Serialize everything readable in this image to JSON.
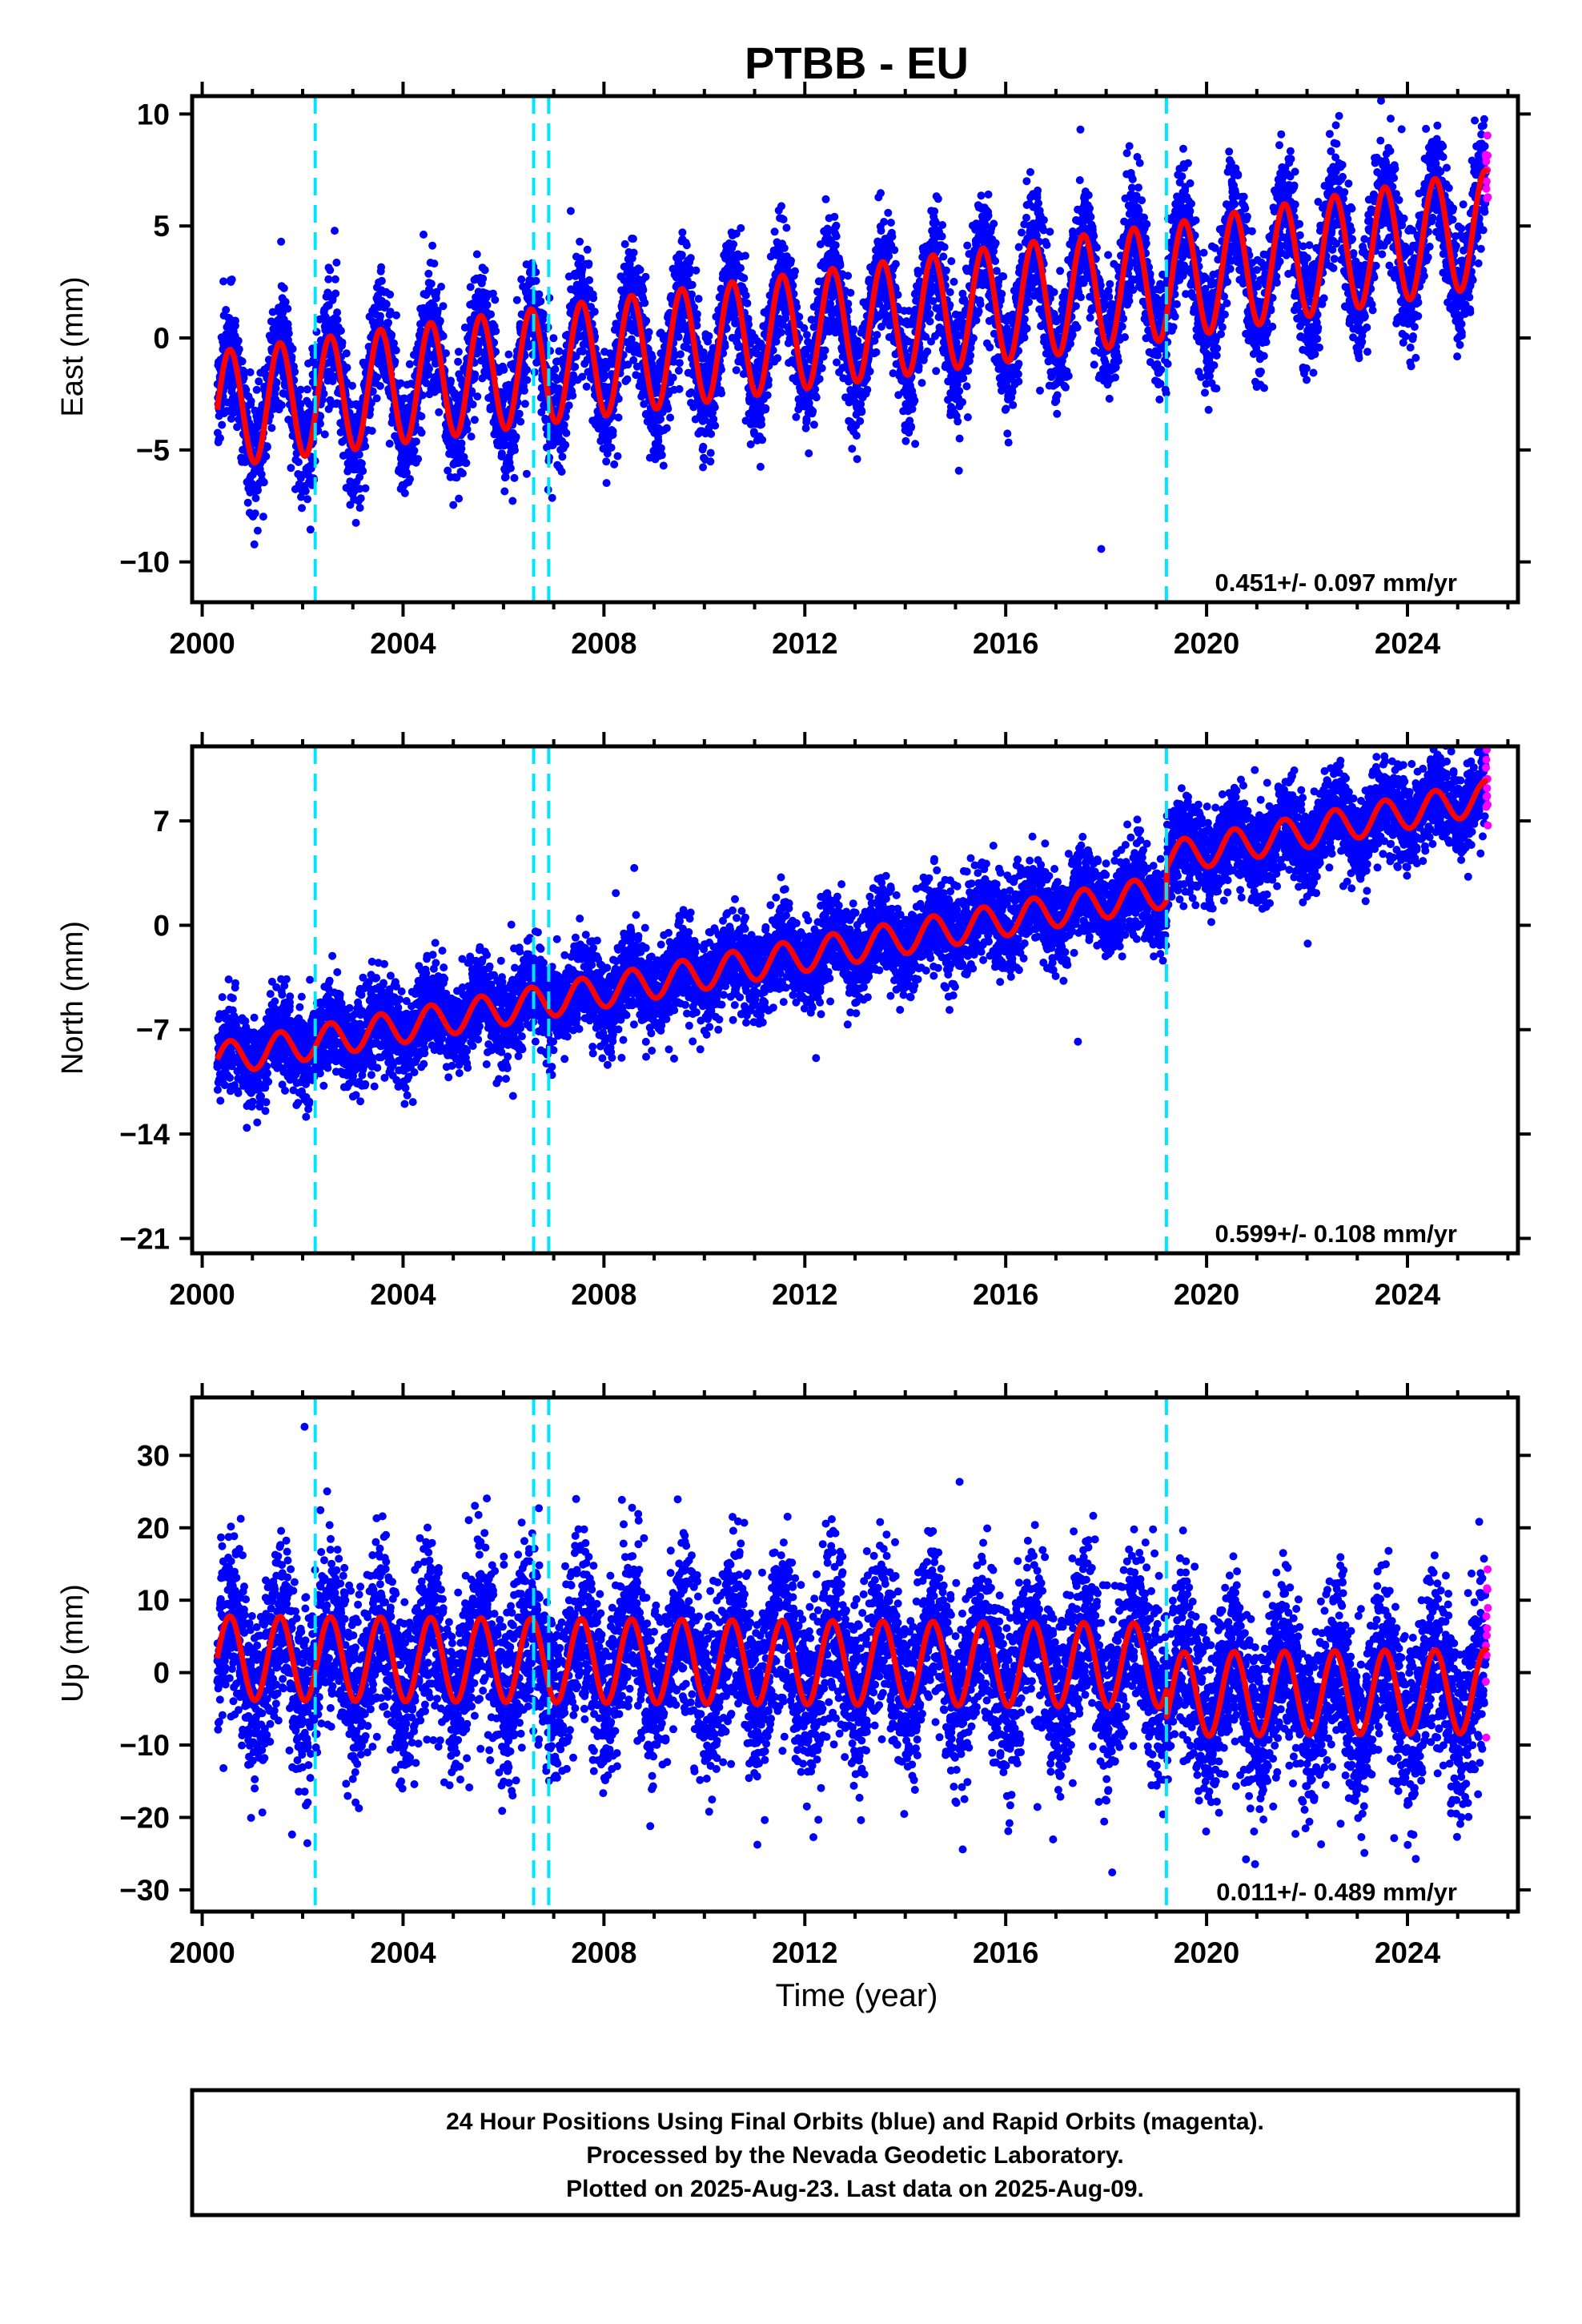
{
  "chart_data": {
    "title": "PTBB - EU",
    "xlabel": "Time (year)",
    "colors": {
      "final_orbits": "#0000ff",
      "rapid_orbits": "#ff00ff",
      "model": "#ff0000",
      "events": "#00e5ff"
    },
    "x_range": [
      1999.8,
      2026.2
    ],
    "x_ticks": [
      2000,
      2004,
      2008,
      2012,
      2016,
      2020,
      2024
    ],
    "x_tick_labels": [
      "2000",
      "2004",
      "2008",
      "2012",
      "2016",
      "2020",
      "2024"
    ],
    "event_lines": [
      2002.25,
      2006.6,
      2006.9,
      2019.2
    ],
    "data_start": 2000.3,
    "data_end": 2025.6,
    "panels": [
      {
        "type": "scatter",
        "component": "East",
        "ylabel": "East (mm)",
        "ylim": [
          -11.8,
          10.8
        ],
        "y_ticks": [
          -10,
          -5,
          0,
          5,
          10
        ],
        "y_tick_labels": [
          "−10",
          "−5",
          "0",
          "5",
          "10"
        ],
        "rate_label": "0.451+/- 0.097 mm/yr",
        "model": {
          "start_value": -3.2,
          "annual_amplitude": 2.6,
          "noise": 1.3,
          "offsets": [],
          "trend_segments": [
            [
              2000.3,
              -3.2
            ],
            [
              2019.2,
              2.5
            ],
            [
              2025.6,
              4.9
            ]
          ]
        }
      },
      {
        "type": "scatter",
        "component": "North",
        "ylabel": "North (mm)",
        "ylim": [
          -22,
          12
        ],
        "y_ticks": [
          -21,
          -14,
          -7,
          0,
          7
        ],
        "y_tick_labels": [
          "−21",
          "−14",
          "−7",
          "0",
          "7"
        ],
        "rate_label": "0.599+/- 0.108 mm/yr",
        "model": {
          "annual_amplitude": 1.1,
          "noise": 1.5,
          "trend_segments": [
            [
              2000.3,
              -9.0
            ],
            [
              2019.2,
              2.3
            ],
            [
              2019.21,
              4.5
            ],
            [
              2025.6,
              8.6
            ]
          ]
        }
      },
      {
        "type": "scatter",
        "component": "Up",
        "ylabel": "Up (mm)",
        "ylim": [
          -33,
          38
        ],
        "y_ticks": [
          -30,
          -20,
          -10,
          0,
          10,
          20,
          30
        ],
        "y_tick_labels": [
          "−30",
          "−20",
          "−10",
          "0",
          "10",
          "20",
          "30"
        ],
        "rate_label": "0.011+/- 0.489 mm/yr",
        "model": {
          "annual_amplitude": 5.8,
          "noise": 6.0,
          "trend_segments": [
            [
              2000.3,
              2.0
            ],
            [
              2019.2,
              1.0
            ],
            [
              2019.21,
              -3.0
            ],
            [
              2025.6,
              -2.6
            ]
          ]
        }
      }
    ]
  },
  "caption": {
    "line1": "24 Hour Positions Using Final Orbits (blue) and Rapid Orbits (magenta).",
    "line2": "Processed by the Nevada Geodetic Laboratory.",
    "line3": "Plotted on 2025-Aug-23. Last data on 2025-Aug-09."
  }
}
